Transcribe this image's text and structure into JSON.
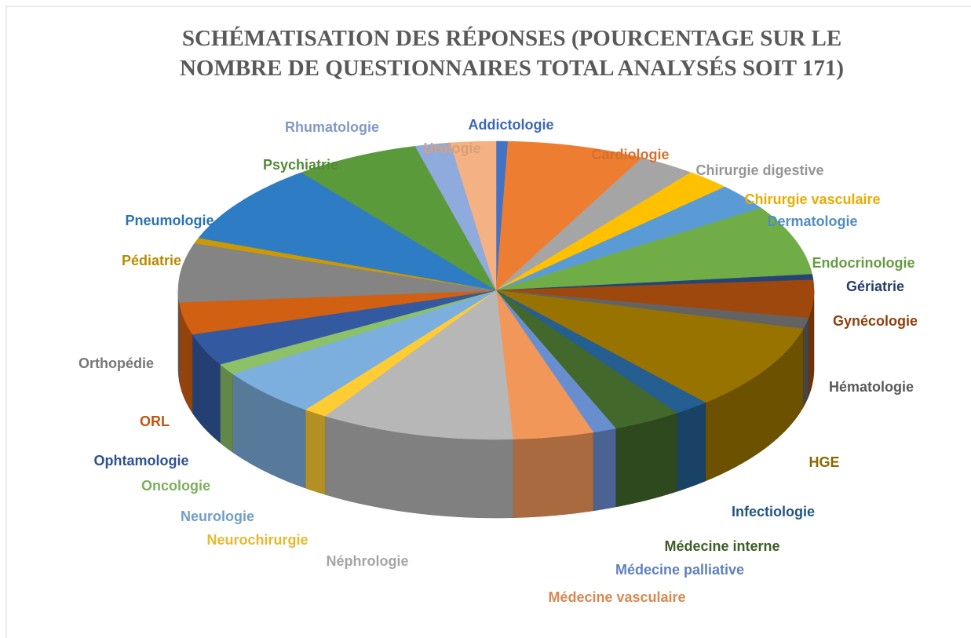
{
  "chart_data": {
    "type": "pie",
    "title": [
      "SCHÉMATISATION DES RÉPONSES (POURCENTAGE SUR LE",
      "NOMBRE DE QUESTIONNAIRES TOTAL ANALYSÉS SOIT 171)"
    ],
    "categories": [
      "Addictologie",
      "Cardiologie",
      "Chirurgie digestive",
      "Chirurgie vasculaire",
      "Dermatologie",
      "Endocrinologie",
      "Gériatrie",
      "Gynécologie",
      "Hématologie",
      "HGE",
      "Infectiologie",
      "Médecine interne",
      "Médecine palliative",
      "Médecine vasculaire",
      "Néphrologie",
      "Neurochirurgie",
      "Neurologie",
      "Oncologie",
      "Ophtamologie",
      "ORL",
      "Orthopédie",
      "Pédiatrie",
      "Pneumologie",
      "Psychiatrie",
      "Rhumatologie",
      "Urologie"
    ],
    "values": [
      0.6,
      7,
      2.9,
      2.3,
      2.9,
      7.6,
      0.6,
      4.1,
      1.2,
      9.4,
      1.8,
      3.5,
      1.2,
      4.1,
      9.9,
      1.2,
      5.3,
      1.2,
      3.5,
      3.5,
      6.4,
      0.6,
      8.8,
      6.4,
      1.8,
      2.3
    ],
    "colors": [
      "#4472c4",
      "#ed7d31",
      "#a5a5a5",
      "#ffc000",
      "#5b9bd5",
      "#70ad47",
      "#264478",
      "#9e480e",
      "#636363",
      "#997300",
      "#255e91",
      "#43682b",
      "#698ed0",
      "#f1975a",
      "#b7b7b7",
      "#ffcd33",
      "#7cafdd",
      "#8cc168",
      "#335aa1",
      "#d26012",
      "#848484",
      "#cc9a00",
      "#2e7dc4",
      "#5b9a3b",
      "#8faadc",
      "#f4b183"
    ]
  }
}
